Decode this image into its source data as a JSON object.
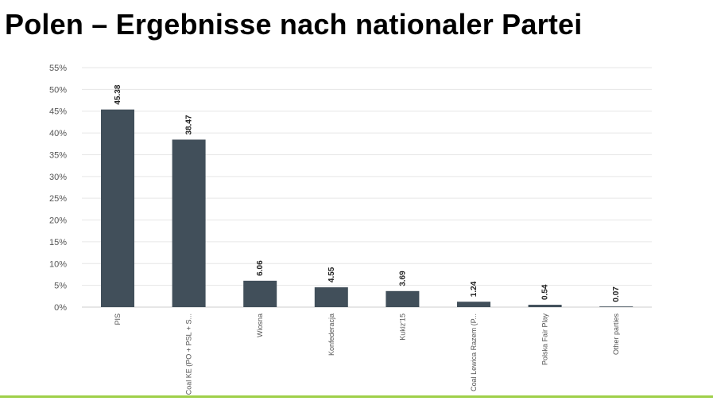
{
  "title": "Polen – Ergebnisse nach nationaler Partei",
  "chart_data": {
    "type": "bar",
    "categories": [
      "PIS",
      "Coal KE (PO + PSL + S...",
      "Wiosna",
      "Konfederacja",
      "Kukiz'15",
      "Coal Lewica Razem (P...",
      "Polska Fair Play",
      "Other parties"
    ],
    "values": [
      45.38,
      38.47,
      6.06,
      4.55,
      3.69,
      1.24,
      0.54,
      0.07
    ],
    "data_labels": [
      "45.38",
      "38.47",
      "6.06",
      "4.55",
      "3.69",
      "1.24",
      "0.54",
      "0.07"
    ],
    "y_ticks": [
      "0%",
      "5%",
      "10%",
      "15%",
      "20%",
      "25%",
      "30%",
      "35%",
      "40%",
      "45%",
      "50%",
      "55%"
    ],
    "ylim": [
      0,
      55
    ],
    "grid": true,
    "legend": "none",
    "bar_color": "#414f5a",
    "grid_color": "#e6e6e6",
    "footer_color": "#9fd04a"
  }
}
